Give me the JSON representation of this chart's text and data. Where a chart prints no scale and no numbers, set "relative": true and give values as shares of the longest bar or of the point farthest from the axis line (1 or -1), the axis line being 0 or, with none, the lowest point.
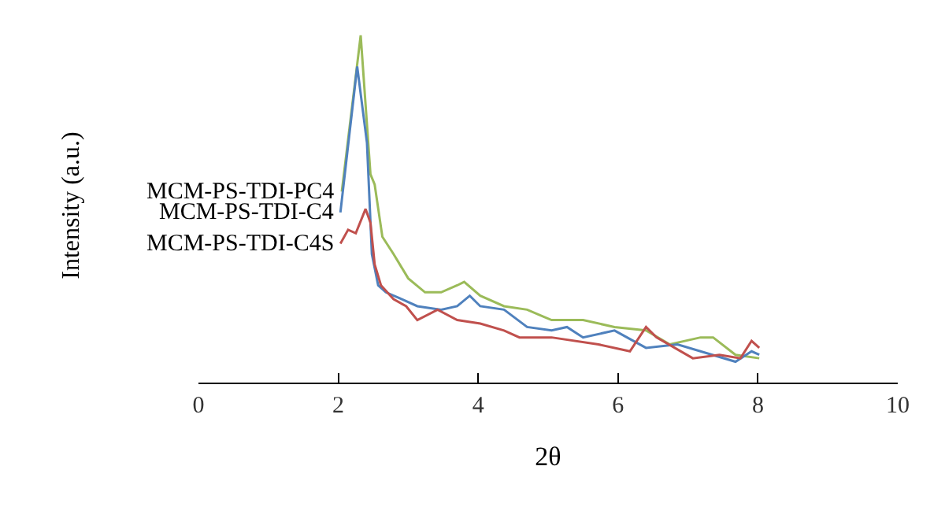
{
  "chart_data": {
    "type": "line",
    "relative": true,
    "xlabel": "2θ",
    "ylabel": "Intensity (a.u.)",
    "xlim": [
      0,
      10
    ],
    "xticks": [
      0,
      2,
      4,
      6,
      8,
      10
    ],
    "grid": false,
    "legend": false,
    "marker": "none",
    "line_style": "solid",
    "series": [
      {
        "name": "MCM-PS-TDI-PC4",
        "color": "#9bbb59",
        "x": [
          2.05,
          2.32,
          2.46,
          2.52,
          2.63,
          2.79,
          3.0,
          3.24,
          3.47,
          3.7,
          3.8,
          4.03,
          4.37,
          4.7,
          4.93,
          5.05,
          5.5,
          5.95,
          6.4,
          6.74,
          7.18,
          7.36,
          7.68,
          8.02
        ],
        "values": [
          0.55,
          1.0,
          0.6,
          0.57,
          0.42,
          0.37,
          0.3,
          0.26,
          0.26,
          0.28,
          0.29,
          0.25,
          0.22,
          0.21,
          0.19,
          0.18,
          0.18,
          0.16,
          0.15,
          0.11,
          0.13,
          0.13,
          0.08,
          0.07
        ]
      },
      {
        "name": "MCM-PS-TDI-C4",
        "color": "#4f81bd",
        "x": [
          2.03,
          2.27,
          2.41,
          2.48,
          2.57,
          2.68,
          2.91,
          3.13,
          3.47,
          3.7,
          3.88,
          4.03,
          4.37,
          4.7,
          5.05,
          5.27,
          5.5,
          5.95,
          6.4,
          6.85,
          7.68,
          7.91,
          8.02
        ],
        "values": [
          0.49,
          0.91,
          0.69,
          0.37,
          0.28,
          0.26,
          0.24,
          0.22,
          0.21,
          0.22,
          0.25,
          0.22,
          0.21,
          0.16,
          0.15,
          0.16,
          0.13,
          0.15,
          0.1,
          0.11,
          0.06,
          0.09,
          0.08
        ]
      },
      {
        "name": "MCM-PS-TDI-C4S",
        "color": "#c0504d",
        "x": [
          2.03,
          2.14,
          2.25,
          2.39,
          2.46,
          2.52,
          2.61,
          2.79,
          2.97,
          3.13,
          3.42,
          3.7,
          4.03,
          4.37,
          4.59,
          5.05,
          5.72,
          6.17,
          6.4,
          6.55,
          7.07,
          7.45,
          7.75,
          7.91,
          8.02
        ],
        "values": [
          0.4,
          0.44,
          0.43,
          0.5,
          0.46,
          0.34,
          0.28,
          0.24,
          0.22,
          0.18,
          0.21,
          0.18,
          0.17,
          0.15,
          0.13,
          0.13,
          0.11,
          0.09,
          0.16,
          0.13,
          0.07,
          0.08,
          0.07,
          0.12,
          0.1
        ]
      }
    ]
  }
}
